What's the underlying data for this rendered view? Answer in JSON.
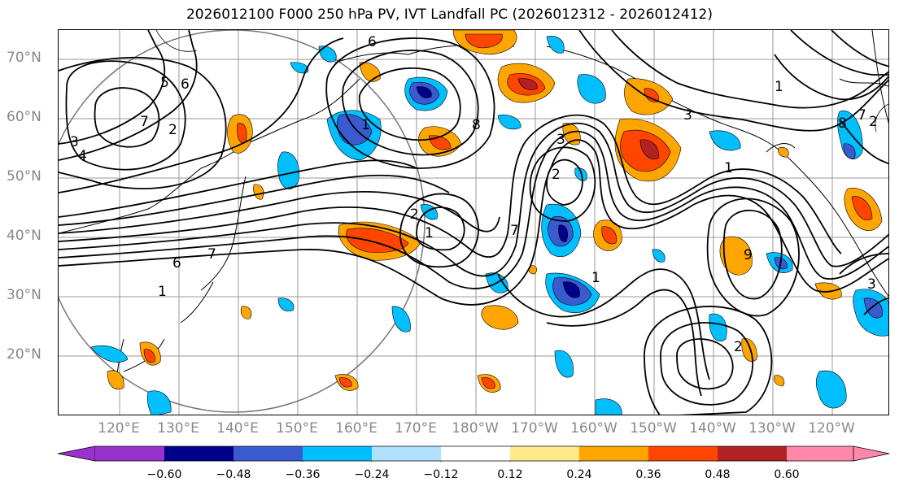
{
  "title": "2026012100 F000 250 hPa PV, IVT Landfall PC (2026012312 - 2026012412)",
  "lat_labels": [
    "70°N",
    "60°N",
    "50°N",
    "40°N",
    "30°N",
    "20°N"
  ],
  "lon_labels": [
    "120°E",
    "130°E",
    "140°E",
    "150°E",
    "160°E",
    "170°E",
    "180°W",
    "170°W",
    "160°W",
    "150°W",
    "140°W",
    "130°W",
    "120°W"
  ],
  "colorbar": {
    "ticks": [
      "−0.60",
      "−0.48",
      "−0.36",
      "−0.24",
      "−0.12",
      "0.12",
      "0.24",
      "0.36",
      "0.48",
      "0.60"
    ],
    "colors": [
      "#9932cc",
      "#00008b",
      "#3a5bd0",
      "#00bfff",
      "#b0e0ff",
      "#ffffff",
      "#ffe98a",
      "#ffa500",
      "#ff4500",
      "#b22222",
      "#ff88aa"
    ]
  },
  "contour_labels": [
    "6",
    "5",
    "7",
    "2",
    "3",
    "4",
    "1",
    "6",
    "7",
    "1",
    "8",
    "6",
    "2",
    "1",
    "2",
    "7",
    "3",
    "1",
    "3",
    "8",
    "2",
    "9",
    "1",
    "2",
    "3",
    "7",
    "1"
  ],
  "colors": {
    "axis_label": "#888888",
    "contour": "#000000"
  }
}
